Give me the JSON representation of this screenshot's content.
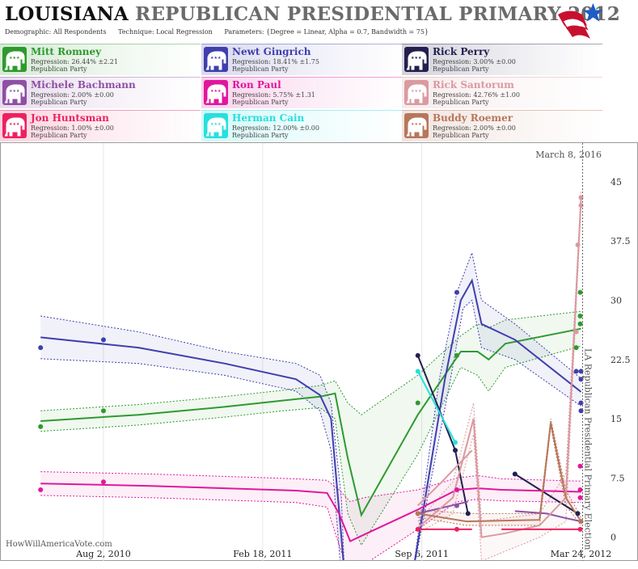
{
  "header": {
    "title_state": "LOUISIANA",
    "title_rest": "REPUBLICAN PRESIDENTIAL PRIMARY 2012",
    "demographic_label": "Demographic:",
    "demographic_value": "All Respondents",
    "technique_label": "Technique:",
    "technique_value": "Local Regression",
    "parameters_label": "Parameters:",
    "parameters_value": "{Degree = Linear, Alpha = 0.7, Bandwidth = 75}"
  },
  "logo_icon": "stars-and-stripes-logo",
  "candidates": [
    {
      "name": "Mitt Romney",
      "regression": "Regression: 26.44% ±2.21",
      "party": "Republican Party",
      "color": "#2e9a2e",
      "icon": "elephant-icon"
    },
    {
      "name": "Newt Gingrich",
      "regression": "Regression: 18.41% ±1.75",
      "party": "Republican Party",
      "color": "#3f3fae",
      "icon": "elephant-icon"
    },
    {
      "name": "Rick Perry",
      "regression": "Regression: 3.00% ±0.00",
      "party": "Republican Party",
      "color": "#23204f",
      "icon": "elephant-icon"
    },
    {
      "name": "Michele Bachmann",
      "regression": "Regression: 2.00% ±0.00",
      "party": "Republican Party",
      "color": "#8e4fa5",
      "icon": "elephant-icon"
    },
    {
      "name": "Ron Paul",
      "regression": "Regression: 5.75% ±1.31",
      "party": "Republican Party",
      "color": "#e0179d",
      "icon": "elephant-icon"
    },
    {
      "name": "Rick Santorum",
      "regression": "Regression: 42.76% ±1.00",
      "party": "Republican Party",
      "color": "#d99aa0",
      "icon": "elephant-icon"
    },
    {
      "name": "Jon Huntsman",
      "regression": "Regression: 1.00% ±0.00",
      "party": "Republican Party",
      "color": "#ee2160",
      "icon": "elephant-icon"
    },
    {
      "name": "Herman Cain",
      "regression": "Regression: 12.00% ±0.00",
      "party": "Republican Party",
      "color": "#27dfdf",
      "icon": "elephant-icon"
    },
    {
      "name": "Buddy Roemer",
      "regression": "Regression: 2.00% ±0.00",
      "party": "Republican Party",
      "color": "#b8765b",
      "icon": "elephant-icon"
    }
  ],
  "source": "HowWillAmericaVote.com",
  "chart_data": {
    "type": "line",
    "x_axis_type": "date",
    "x_ticks": [
      "Aug 2, 2010",
      "Feb 18, 2011",
      "Sep 6, 2011",
      "Mar 24, 2012"
    ],
    "x_range": [
      "2010-03-25",
      "2012-04-25"
    ],
    "y_ticks": [
      "0",
      "7.5",
      "15",
      "22.5",
      "30",
      "37.5",
      "45"
    ],
    "ylim": [
      -3,
      50
    ],
    "y_axis_position": "right",
    "grid": "vertical",
    "annotations": [
      {
        "text": "March 8, 2016",
        "position": "top-right"
      },
      {
        "text": "LA Republican Presidential Primary Election",
        "date": "2012-03-24"
      }
    ],
    "series": [
      {
        "name": "Mitt Romney",
        "points": [
          [
            "2010-05-15",
            14
          ],
          [
            "2010-08-02",
            16
          ],
          [
            "2011-09-01",
            17
          ],
          [
            "2011-10-20",
            23
          ],
          [
            "2012-03-18",
            24
          ],
          [
            "2012-03-23",
            31
          ],
          [
            "2012-03-23",
            27
          ],
          [
            "2012-03-23",
            28
          ]
        ],
        "trend": [
          [
            "2010-05-15",
            14.7
          ],
          [
            "2010-09-15",
            15.5
          ],
          [
            "2011-01-01",
            16.5
          ],
          [
            "2011-03-15",
            17.3
          ],
          [
            "2011-05-01",
            17.8
          ],
          [
            "2011-05-20",
            18.2
          ],
          [
            "2011-06-05",
            10
          ],
          [
            "2011-06-22",
            2.8
          ],
          [
            "2011-09-01",
            15.5
          ],
          [
            "2011-10-25",
            23.5
          ],
          [
            "2011-11-15",
            23.5
          ],
          [
            "2011-11-29",
            22.5
          ],
          [
            "2011-12-20",
            24.5
          ],
          [
            "2012-03-24",
            26.4
          ]
        ],
        "upper": [
          [
            "2010-05-15",
            16
          ],
          [
            "2010-09-15",
            16.8
          ],
          [
            "2011-01-01",
            17.8
          ],
          [
            "2011-03-15",
            18.6
          ],
          [
            "2011-05-01",
            19.2
          ],
          [
            "2011-05-20",
            19.8
          ],
          [
            "2011-06-05",
            17
          ],
          [
            "2011-06-22",
            15.5
          ],
          [
            "2011-09-01",
            20.5
          ],
          [
            "2011-10-25",
            25.5
          ],
          [
            "2011-11-15",
            27
          ],
          [
            "2011-11-29",
            26.5
          ],
          [
            "2011-12-20",
            27.5
          ],
          [
            "2012-03-24",
            28.6
          ]
        ],
        "lower": [
          [
            "2010-05-15",
            13.4
          ],
          [
            "2010-09-15",
            14.2
          ],
          [
            "2011-01-01",
            15.2
          ],
          [
            "2011-03-15",
            16
          ],
          [
            "2011-05-01",
            16.4
          ],
          [
            "2011-05-20",
            15
          ],
          [
            "2011-06-05",
            3
          ],
          [
            "2011-06-22",
            -1
          ],
          [
            "2011-09-01",
            10.5
          ],
          [
            "2011-10-25",
            21.5
          ],
          [
            "2011-11-15",
            20.5
          ],
          [
            "2011-11-29",
            18.5
          ],
          [
            "2011-12-20",
            21.5
          ],
          [
            "2012-03-24",
            24.2
          ]
        ]
      },
      {
        "name": "Newt Gingrich",
        "points": [
          [
            "2010-05-15",
            24
          ],
          [
            "2010-08-02",
            25
          ],
          [
            "2011-10-20",
            31
          ],
          [
            "2012-03-18",
            21
          ],
          [
            "2012-03-24",
            17
          ],
          [
            "2012-03-24",
            21
          ],
          [
            "2012-03-24",
            16
          ],
          [
            "2012-03-24",
            20
          ]
        ],
        "trend": [
          [
            "2010-05-15",
            25.3
          ],
          [
            "2010-09-15",
            24
          ],
          [
            "2011-01-01",
            22
          ],
          [
            "2011-04-01",
            20
          ],
          [
            "2011-05-01",
            18
          ],
          [
            "2011-05-15",
            15
          ],
          [
            "2011-05-28",
            0
          ],
          [
            "2011-06-01",
            -5
          ],
          [
            "2011-08-25",
            -5
          ],
          [
            "2011-10-05",
            20
          ],
          [
            "2011-10-25",
            30
          ],
          [
            "2011-11-08",
            32.5
          ],
          [
            "2011-11-20",
            27
          ],
          [
            "2012-01-01",
            25
          ],
          [
            "2012-03-24",
            18.4
          ]
        ],
        "upper": [
          [
            "2010-05-15",
            28
          ],
          [
            "2010-09-15",
            26
          ],
          [
            "2011-01-01",
            23.5
          ],
          [
            "2011-04-01",
            22
          ],
          [
            "2011-05-01",
            20.5
          ],
          [
            "2011-05-15",
            17
          ],
          [
            "2011-05-28",
            5
          ],
          [
            "2011-06-01",
            -5
          ],
          [
            "2011-08-25",
            -5
          ],
          [
            "2011-09-28",
            20
          ],
          [
            "2011-10-20",
            31
          ],
          [
            "2011-11-08",
            36
          ],
          [
            "2011-11-20",
            30
          ],
          [
            "2012-01-01",
            27
          ],
          [
            "2012-03-24",
            20.1
          ]
        ],
        "lower": [
          [
            "2010-05-15",
            22.6
          ],
          [
            "2010-09-15",
            22
          ],
          [
            "2011-01-01",
            20.5
          ],
          [
            "2011-04-01",
            18.5
          ],
          [
            "2011-05-01",
            16
          ],
          [
            "2011-05-15",
            11
          ],
          [
            "2011-05-28",
            -5
          ],
          [
            "2011-08-25",
            -5
          ],
          [
            "2011-10-12",
            20
          ],
          [
            "2011-10-28",
            29
          ],
          [
            "2011-11-08",
            30
          ],
          [
            "2011-11-20",
            24
          ],
          [
            "2012-01-01",
            22.5
          ],
          [
            "2012-03-24",
            16.6
          ]
        ]
      },
      {
        "name": "Rick Perry",
        "points": [
          [
            "2011-09-01",
            23
          ],
          [
            "2011-10-18",
            11
          ],
          [
            "2011-11-03",
            3
          ],
          [
            "2012-03-20",
            3
          ],
          [
            "2012-01-01",
            8
          ]
        ],
        "trend": [
          [
            "2011-09-01",
            23
          ],
          [
            "2011-10-18",
            11
          ],
          [
            "2011-11-03",
            3
          ]
        ],
        "trend2": [
          [
            "2012-01-01",
            8
          ],
          [
            "2012-03-20",
            3
          ]
        ]
      },
      {
        "name": "Michele Bachmann",
        "points": [
          [
            "2011-09-01",
            3
          ],
          [
            "2011-10-20",
            4
          ]
        ],
        "trend": [
          [
            "2011-09-01",
            3
          ],
          [
            "2011-11-03",
            4.5
          ]
        ],
        "trend2": [
          [
            "2012-01-01",
            3.3
          ],
          [
            "2012-02-10",
            3
          ],
          [
            "2012-03-01",
            2.5
          ],
          [
            "2012-03-24",
            2
          ]
        ]
      },
      {
        "name": "Ron Paul",
        "points": [
          [
            "2010-05-15",
            6
          ],
          [
            "2010-08-02",
            7
          ],
          [
            "2011-10-20",
            6
          ],
          [
            "2012-03-23",
            9
          ],
          [
            "2012-03-23",
            6
          ],
          [
            "2012-03-23",
            5
          ]
        ],
        "trend": [
          [
            "2010-05-15",
            6.8
          ],
          [
            "2010-10-01",
            6.5
          ],
          [
            "2011-01-01",
            6.2
          ],
          [
            "2011-04-01",
            5.9
          ],
          [
            "2011-05-10",
            5.6
          ],
          [
            "2011-05-25",
            3
          ],
          [
            "2011-06-08",
            -0.5
          ],
          [
            "2011-06-25",
            0.3
          ],
          [
            "2011-09-01",
            3.5
          ],
          [
            "2011-10-20",
            6
          ],
          [
            "2011-11-15",
            6.2
          ],
          [
            "2011-12-15",
            6
          ],
          [
            "2012-03-24",
            5.75
          ]
        ],
        "upper": [
          [
            "2010-05-15",
            8.3
          ],
          [
            "2010-10-01",
            8
          ],
          [
            "2011-01-01",
            7.7
          ],
          [
            "2011-04-01",
            7.4
          ],
          [
            "2011-05-10",
            7.2
          ],
          [
            "2011-05-25",
            6
          ],
          [
            "2011-06-08",
            4.5
          ],
          [
            "2011-06-25",
            5
          ],
          [
            "2011-09-01",
            6
          ],
          [
            "2011-10-20",
            7.5
          ],
          [
            "2011-11-15",
            7.8
          ],
          [
            "2011-12-15",
            7.4
          ],
          [
            "2012-03-24",
            7.1
          ]
        ],
        "lower": [
          [
            "2010-05-15",
            5.3
          ],
          [
            "2010-10-01",
            5
          ],
          [
            "2011-01-01",
            4.7
          ],
          [
            "2011-04-01",
            4.4
          ],
          [
            "2011-05-10",
            3.8
          ],
          [
            "2011-05-25",
            -1
          ],
          [
            "2011-06-08",
            -5
          ],
          [
            "2011-06-25",
            -3.5
          ],
          [
            "2011-09-01",
            1
          ],
          [
            "2011-10-20",
            4.5
          ],
          [
            "2011-11-15",
            4.8
          ],
          [
            "2011-12-15",
            4.6
          ],
          [
            "2012-03-24",
            4.4
          ]
        ]
      },
      {
        "name": "Rick Santorum",
        "points": [
          [
            "2012-03-24",
            43
          ],
          [
            "2012-03-24",
            42
          ],
          [
            "2012-03-20",
            37
          ],
          [
            "2012-03-18",
            26
          ]
        ],
        "trend": [
          [
            "2011-09-01",
            1.2
          ],
          [
            "2011-10-15",
            5
          ],
          [
            "2011-11-10",
            15
          ],
          [
            "2011-11-20",
            0
          ],
          [
            "2011-12-20",
            0.5
          ],
          [
            "2012-02-01",
            1.5
          ],
          [
            "2012-03-05",
            5
          ],
          [
            "2012-03-24",
            42.76
          ]
        ],
        "trend2": [
          [
            "2011-09-01",
            4
          ],
          [
            "2011-10-01",
            7
          ],
          [
            "2011-11-08",
            11
          ]
        ],
        "upper": [
          [
            "2011-09-01",
            2
          ],
          [
            "2011-10-15",
            7
          ],
          [
            "2011-11-10",
            17
          ],
          [
            "2011-11-20",
            2
          ],
          [
            "2012-02-01",
            3
          ],
          [
            "2012-03-05",
            8
          ],
          [
            "2012-03-24",
            43.7
          ]
        ],
        "lower": [
          [
            "2011-09-01",
            0.5
          ],
          [
            "2011-10-15",
            3
          ],
          [
            "2011-11-10",
            13
          ],
          [
            "2011-11-20",
            -3
          ],
          [
            "2012-02-01",
            0
          ],
          [
            "2012-03-05",
            2
          ],
          [
            "2012-03-24",
            41.8
          ]
        ]
      },
      {
        "name": "Jon Huntsman",
        "points": [
          [
            "2011-09-01",
            1
          ],
          [
            "2011-10-20",
            1
          ],
          [
            "2012-03-23",
            1
          ]
        ],
        "trend": [
          [
            "2011-09-01",
            1
          ],
          [
            "2011-11-08",
            1
          ]
        ],
        "trend2": [
          [
            "2011-12-15",
            1
          ],
          [
            "2012-03-24",
            1
          ]
        ]
      },
      {
        "name": "Herman Cain",
        "points": [
          [
            "2011-09-01",
            21
          ],
          [
            "2011-10-18",
            12
          ]
        ],
        "trend": [
          [
            "2011-09-01",
            21
          ],
          [
            "2011-10-18",
            12
          ]
        ]
      },
      {
        "name": "Buddy Roemer",
        "points": [
          [
            "2011-09-01",
            3
          ],
          [
            "2012-03-24",
            2
          ]
        ],
        "trend": [
          [
            "2011-09-01",
            3
          ],
          [
            "2011-11-01",
            2
          ],
          [
            "2012-02-01",
            2.2
          ],
          [
            "2012-02-15",
            14.5
          ],
          [
            "2012-03-05",
            5
          ],
          [
            "2012-03-24",
            2
          ]
        ],
        "upper": [
          [
            "2011-09-01",
            3.5
          ],
          [
            "2011-11-01",
            3
          ],
          [
            "2012-02-01",
            3
          ],
          [
            "2012-02-15",
            15
          ],
          [
            "2012-03-05",
            6
          ],
          [
            "2012-03-24",
            2.5
          ]
        ],
        "lower": [
          [
            "2011-09-01",
            2.5
          ],
          [
            "2011-11-01",
            1.5
          ],
          [
            "2012-02-01",
            1.5
          ],
          [
            "2012-02-15",
            14
          ],
          [
            "2012-03-05",
            4
          ],
          [
            "2012-03-24",
            1.5
          ]
        ]
      }
    ]
  }
}
